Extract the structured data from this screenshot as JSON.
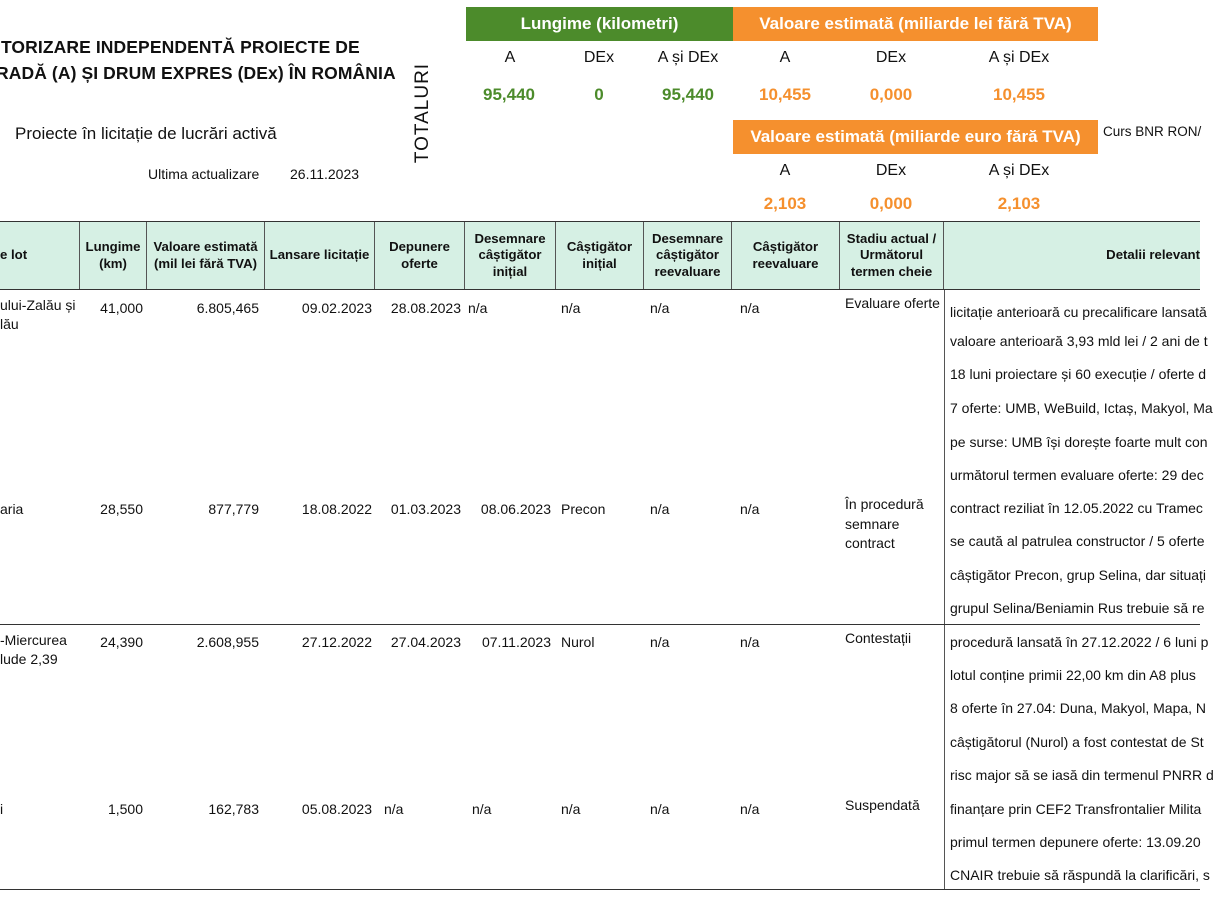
{
  "header": {
    "title_line1": "ITORIZARE INDEPENDENTĂ PROIECTE DE",
    "title_line2": "RADĂ (A) ȘI DRUM EXPRES (DEx) ÎN ROMÂNIA",
    "subtitle": "Proiecte în licitație de lucrări activă",
    "update_label": "Ultima actualizare",
    "update_date": "26.11.2023",
    "totals_label": "TOTALURI",
    "curs": "Curs BNR RON/"
  },
  "totals": {
    "length_title": "Lungime (kilometri)",
    "value_lei_title": "Valoare estimată (miliarde lei fără TVA)",
    "value_eur_title": "Valoare estimată (miliarde euro fără TVA)",
    "col_a": "A",
    "col_dex": "DEx",
    "col_adex": "A și DEx",
    "length": {
      "a": "95,440",
      "dex": "0",
      "adex": "95,440"
    },
    "lei": {
      "a": "10,455",
      "dex": "0,000",
      "adex": "10,455"
    },
    "eur": {
      "a": "2,103",
      "dex": "0,000",
      "adex": "2,103"
    }
  },
  "table": {
    "headers": {
      "lot": "e lot",
      "length": "Lungime (km)",
      "value": "Valoare estimată (mil lei fără TVA)",
      "launch": "Lansare licitație",
      "submit": "Depunere oferte",
      "initial_award": "Desemnare câștigător inițial",
      "initial_winner": "Câștigător inițial",
      "re_award": "Desemnare câștigător reevaluare",
      "re_winner": "Câștigător reevaluare",
      "status": "Stadiu actual / Următorul termen cheie",
      "details": "Detalii relevant"
    },
    "rows": [
      {
        "lot": [
          "ului-Zalău și",
          "lău"
        ],
        "length": "41,000",
        "value": "6.805,465",
        "launch": "09.02.2023",
        "submit": "28.08.2023",
        "initial_award": "n/a",
        "initial_winner": "n/a",
        "re_award": "n/a",
        "re_winner": "n/a",
        "status": "Evaluare oferte",
        "details": [
          "licitație anterioară cu precalificare lansată",
          "valoare anterioară 3,93 mld lei / 2 ani de t",
          "18 luni proiectare și 60 execuție / oferte d",
          "7 oferte: UMB, WeBuild, Ictaș, Makyol, Ma",
          "pe surse: UMB își dorește foarte mult con",
          "următorul termen evaluare oferte: 29 dec"
        ]
      },
      {
        "lot": [
          "aria"
        ],
        "length": "28,550",
        "value": "877,779",
        "launch": "18.08.2022",
        "submit": "01.03.2023",
        "initial_award": "08.06.2023",
        "initial_winner": "Precon",
        "re_award": "n/a",
        "re_winner": "n/a",
        "status": "În procedură semnare contract",
        "details": [
          "contract reziliat în 12.05.2022 cu Tramec",
          "se caută al patrulea constructor / 5 oferte",
          "câștigător Precon, grup Selina, dar situați",
          "grupul Selina/Beniamin Rus trebuie să re"
        ]
      },
      {
        "lot": [
          "-Miercurea",
          "lude 2,39"
        ],
        "length": "24,390",
        "value": "2.608,955",
        "launch": "27.12.2022",
        "submit": "27.04.2023",
        "initial_award": "07.11.2023",
        "initial_winner": "Nurol",
        "re_award": "n/a",
        "re_winner": "n/a",
        "status": "Contestații",
        "details": [
          "procedură lansată în 27.12.2022 / 6 luni p",
          "lotul conține primii 22,00 km din A8 plus",
          "8 oferte în 27.04: Duna, Makyol, Mapa, N",
          "câștigătorul (Nurol) a fost contestat de St",
          "risc major să se iasă din termenul PNRR d"
        ]
      },
      {
        "lot": [
          "i"
        ],
        "length": "1,500",
        "value": "162,783",
        "launch": "05.08.2023",
        "submit": "n/a",
        "initial_award": "n/a",
        "initial_winner": "n/a",
        "re_award": "n/a",
        "re_winner": "n/a",
        "status": "Suspendată",
        "details": [
          "finanțare prin CEF2 Transfrontalier Milita",
          "primul termen depunere oferte: 13.09.20",
          " CNAIR trebuie să răspundă la clarificări, s"
        ]
      }
    ]
  }
}
